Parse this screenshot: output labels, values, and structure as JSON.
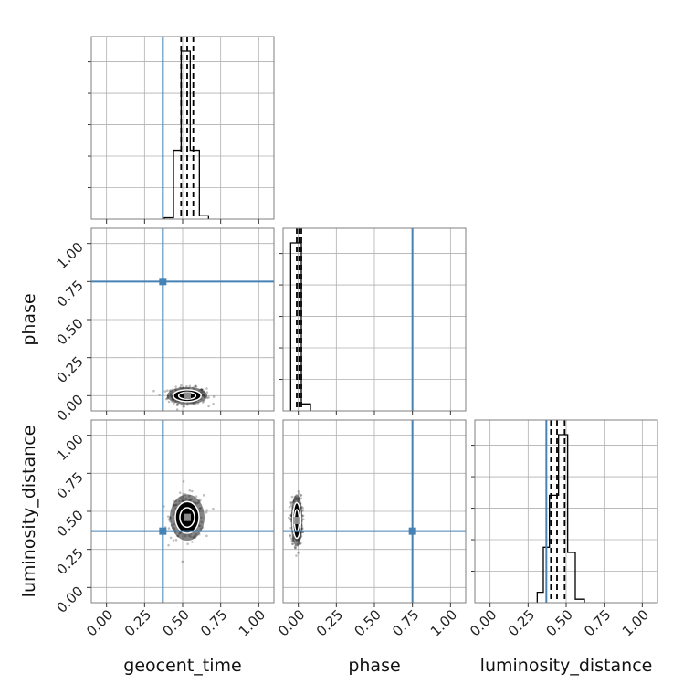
{
  "chart_data": {
    "type": "corner",
    "parameters": [
      {
        "name": "geocent_time",
        "label": "geocent_time",
        "truth": 0.37,
        "quantiles": [
          0.49,
          0.53,
          0.57
        ],
        "hist": {
          "edges": [
            0.38,
            0.44,
            0.49,
            0.55,
            0.61,
            0.67
          ],
          "density": [
            0.008,
            0.41,
            1.0,
            0.41,
            0.02
          ]
        }
      },
      {
        "name": "phase",
        "label": "phase",
        "truth": 0.75,
        "quantiles": [
          -0.01,
          0.005,
          0.02
        ],
        "hist": {
          "edges": [
            -0.05,
            0.02,
            0.08
          ],
          "density": [
            0.96,
            0.04
          ]
        }
      },
      {
        "name": "luminosity_distance",
        "label": "luminosity_distance",
        "truth": 0.37,
        "quantiles": [
          0.4,
          0.44,
          0.49
        ],
        "hist": {
          "edges": [
            0.31,
            0.35,
            0.39,
            0.45,
            0.51,
            0.56,
            0.62
          ],
          "density": [
            0.06,
            0.32,
            0.62,
            0.97,
            0.29,
            0.02
          ]
        }
      }
    ],
    "ticks": [
      "0.00",
      "0.25",
      "0.50",
      "0.75",
      "1.00"
    ],
    "tick_values": [
      0,
      0.25,
      0.5,
      0.75,
      1.0
    ],
    "xlim": [
      -0.1,
      1.1
    ],
    "grid": true,
    "truth_color": "#4682b4",
    "contours": [
      {
        "x": "geocent_time",
        "y": "phase",
        "center": [
          0.53,
          0.0
        ],
        "spread": [
          0.07,
          0.03
        ]
      },
      {
        "x": "geocent_time",
        "y": "luminosity_distance",
        "center": [
          0.53,
          0.46
        ],
        "spread": [
          0.06,
          0.08
        ]
      },
      {
        "x": "phase",
        "y": "luminosity_distance",
        "center": [
          -0.01,
          0.44
        ],
        "spread": [
          0.02,
          0.09
        ]
      }
    ]
  }
}
